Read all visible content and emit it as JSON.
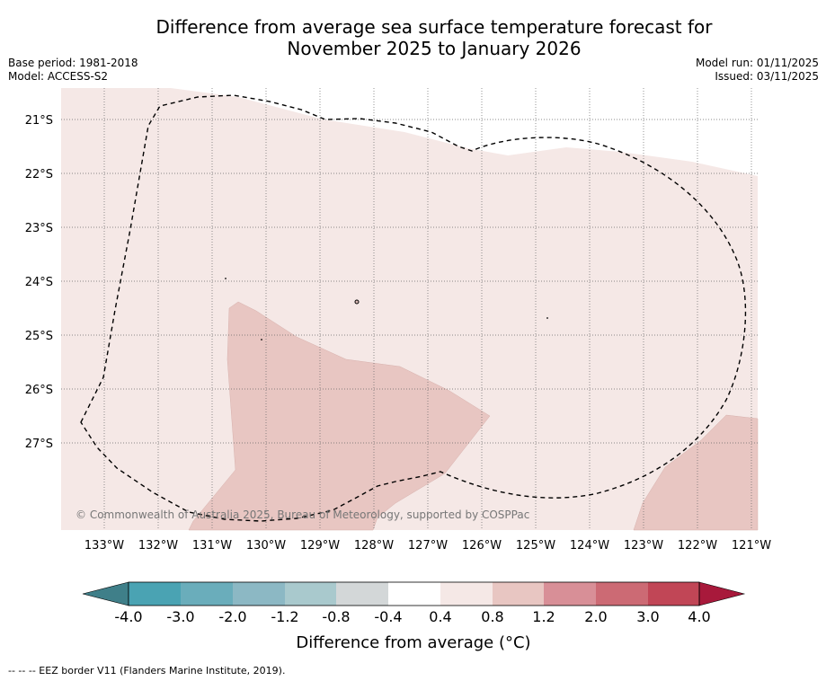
{
  "title": {
    "line1": "Difference from average sea surface temperature forecast for",
    "line2": "November 2025 to January 2026"
  },
  "meta": {
    "base_period": "Base period: 1981-2018",
    "model": "Model: ACCESS-S2",
    "model_run": "Model run: 01/11/2025",
    "issued": "Issued: 03/11/2025"
  },
  "map": {
    "lat_labels": [
      "21°S",
      "22°S",
      "23°S",
      "24°S",
      "25°S",
      "26°S",
      "27°S"
    ],
    "lon_labels": [
      "133°W",
      "132°W",
      "131°W",
      "130°W",
      "129°W",
      "128°W",
      "127°W",
      "126°W",
      "125°W",
      "124°W",
      "123°W",
      "122°W",
      "121°W"
    ],
    "copyright": "© Commonwealth of Australia 2025, Bureau of Meteorology, supported by COSPPac"
  },
  "colorbar": {
    "ticks": [
      "-4.0",
      "-3.0",
      "-2.0",
      "-1.2",
      "-0.8",
      "-0.4",
      "0.4",
      "0.8",
      "1.2",
      "2.0",
      "3.0",
      "4.0"
    ],
    "colors": [
      "#3f7f89",
      "#4aa3b3",
      "#6aadbb",
      "#8cb8c4",
      "#a9c9cd",
      "#d3d7d8",
      "#ffffff",
      "#f5e8e6",
      "#e8c6c2",
      "#d88f97",
      "#cc6a74",
      "#c14656",
      "#a8193b"
    ],
    "label": "Difference from average (°C)"
  },
  "footnote": "--  --  -- EEZ border V11 (Flanders Marine Institute, 2019)."
}
